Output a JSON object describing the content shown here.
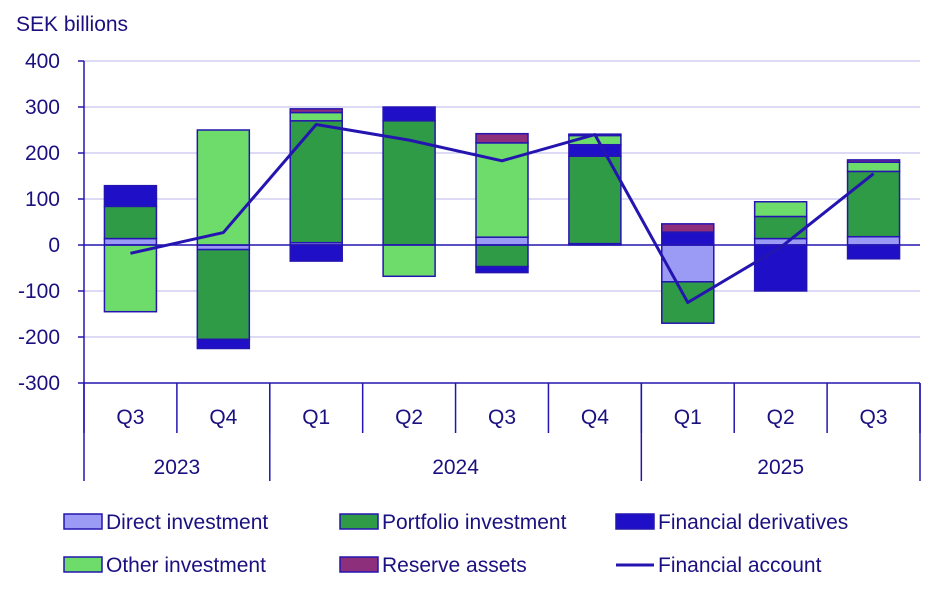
{
  "chart_data": {
    "type": "bar",
    "stacked": true,
    "ylabel": "SEK billions",
    "ylim": [
      -300,
      400
    ],
    "yticks": [
      400,
      300,
      200,
      100,
      0,
      -100,
      -200,
      -300
    ],
    "grid": true,
    "legend_placement": "bottom",
    "categories": [
      "Q3",
      "Q4",
      "Q1",
      "Q2",
      "Q3",
      "Q4",
      "Q1",
      "Q2",
      "Q3"
    ],
    "year_groups": [
      {
        "label": "2023",
        "start": 0,
        "end": 1
      },
      {
        "label": "2024",
        "start": 2,
        "end": 5
      },
      {
        "label": "2025",
        "start": 6,
        "end": 8
      }
    ],
    "series": [
      {
        "name": "Direct investment",
        "color": "#9b9bf5",
        "values": [
          14,
          -10,
          5,
          0,
          17,
          3,
          -80,
          14,
          18
        ]
      },
      {
        "name": "Portfolio investment",
        "color": "#2f9b47",
        "values": [
          70,
          -195,
          265,
          270,
          -47,
          190,
          -90,
          48,
          142
        ]
      },
      {
        "name": "Financial derivatives",
        "color": "#1f10c8",
        "values": [
          45,
          -20,
          -35,
          30,
          -13,
          25,
          28,
          -100,
          -30
        ]
      },
      {
        "name": "Other investment",
        "color": "#6ddc6b",
        "values": [
          -145,
          250,
          18,
          -68,
          205,
          20,
          0,
          32,
          20
        ]
      },
      {
        "name": "Reserve assets",
        "color": "#8e2f7b",
        "values": [
          0,
          0,
          8,
          0,
          20,
          3,
          18,
          0,
          5
        ]
      }
    ],
    "line": {
      "name": "Financial account",
      "color": "#2515b0",
      "values": [
        -18,
        27,
        262,
        228,
        183,
        240,
        -125,
        -5,
        155
      ]
    }
  },
  "legend": {
    "direct": "Direct investment",
    "portfolio": "Portfolio investment",
    "derivatives": "Financial derivatives",
    "other": "Other investment",
    "reserve": "Reserve assets",
    "account": "Financial account"
  }
}
